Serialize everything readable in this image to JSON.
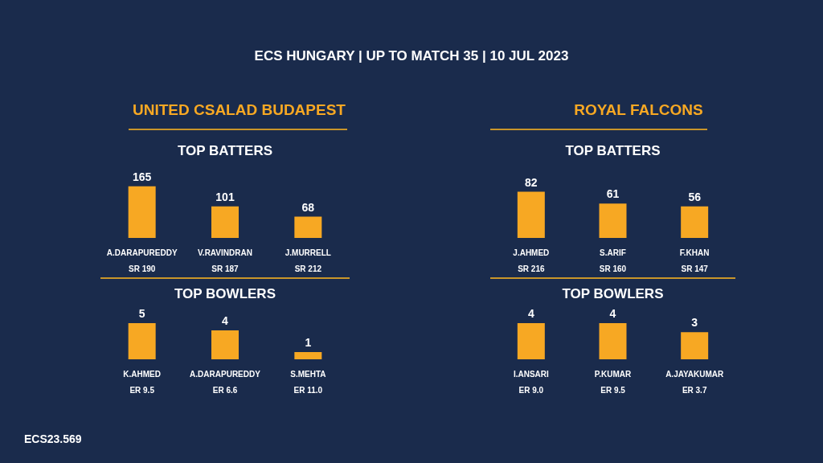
{
  "chart_data": [
    {
      "type": "other",
      "title": "ECS HUNGARY | UP TO MATCH 35 | 10 JUL 2023",
      "annotations": [
        "ECS23.569"
      ]
    },
    {
      "type": "bar",
      "title": "UNITED CSALAD BUDAPEST",
      "subtitle": "TOP BATTERS",
      "categories": [
        "A.DARAPUREDDY\nSR 190",
        "V.RAVINDRAN\nSR 187",
        "J.MURRELL\nSR 212"
      ],
      "values": [
        165,
        101,
        68
      ],
      "color": "#f7a823",
      "data_labels": true
    },
    {
      "type": "bar",
      "title": "TOP BOWLERS",
      "categories": [
        "K.AHMED\nER 9.5",
        "A.DARAPUREDDY\nER 6.6",
        "S.MEHTA\nER 11.0"
      ],
      "values": [
        5,
        4,
        1
      ],
      "color": "#f7a823",
      "data_labels": true
    },
    {
      "type": "bar",
      "title": "ROYAL FALCONS",
      "subtitle": "TOP BATTERS",
      "categories": [
        "J.AHMED\nSR 216",
        "S.ARIF\nSR 160",
        "F.KHAN\nSR 147"
      ],
      "values": [
        82,
        61,
        56
      ],
      "color": "#f7a823",
      "data_labels": true
    },
    {
      "type": "bar",
      "title": "TOP BOWLERS",
      "categories": [
        "I.ANSARI\nER 9.0",
        "P.KUMAR\nER 9.5",
        "A.JAYAKUMAR\nER 3.7"
      ],
      "values": [
        4,
        4,
        3
      ],
      "color": "#f7a823",
      "data_labels": true
    }
  ]
}
